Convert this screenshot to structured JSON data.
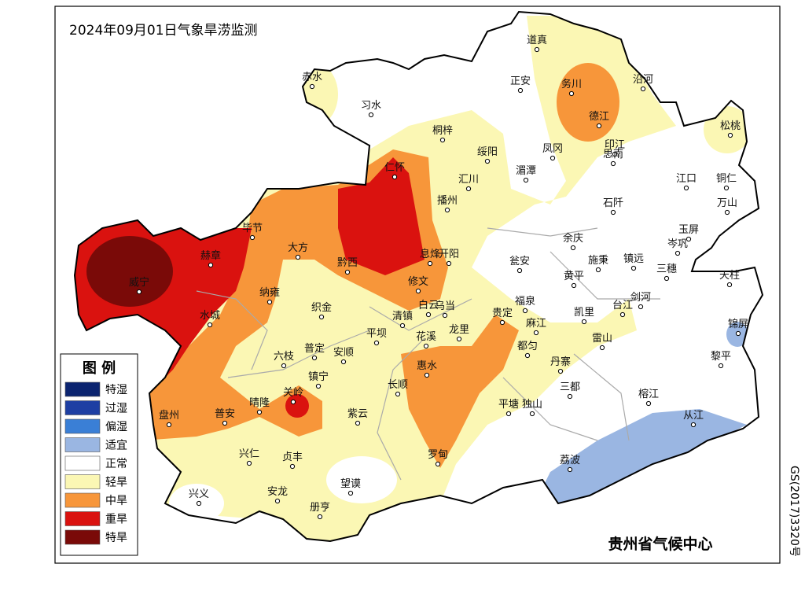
{
  "title": "2024年09月01日气象旱涝监测",
  "legend": {
    "title": "图  例",
    "items": [
      {
        "label": "特湿",
        "color": "#0b2470"
      },
      {
        "label": "过湿",
        "color": "#1e3fa3"
      },
      {
        "label": "偏湿",
        "color": "#3a7fd6"
      },
      {
        "label": "适宜",
        "color": "#9ab6e2"
      },
      {
        "label": "正常",
        "color": "#ffffff"
      },
      {
        "label": "轻旱",
        "color": "#fbf7b4"
      },
      {
        "label": "中旱",
        "color": "#f7963a"
      },
      {
        "label": "重旱",
        "color": "#da120f"
      },
      {
        "label": "特旱",
        "color": "#7a0a08"
      }
    ]
  },
  "cities": [
    "道真",
    "正安",
    "务川",
    "沿河",
    "赤水",
    "习水",
    "桐梓",
    "绥阳",
    "凤冈",
    "印江",
    "松桃",
    "德江",
    "思南",
    "湄潭",
    "江口",
    "铜仁",
    "仁怀",
    "汇川",
    "播州",
    "石阡",
    "万山",
    "毕节",
    "赫章",
    "大方",
    "黔西",
    "息烽",
    "开阳",
    "瓮安",
    "余庆",
    "施秉",
    "镇远",
    "玉屏",
    "岑巩",
    "三穗",
    "黄平",
    "天柱",
    "威宁",
    "纳雍",
    "修文",
    "福泉",
    "剑河",
    "凯里",
    "台江",
    "织金",
    "水城",
    "白云",
    "乌当",
    "清镇",
    "平坝",
    "贵定",
    "龙里",
    "花溪",
    "麻江",
    "都匀",
    "雷山",
    "锦屏",
    "普定",
    "安顺",
    "六枝",
    "黎平",
    "丹寨",
    "惠水",
    "镇宁",
    "长顺",
    "三都",
    "关岭",
    "晴隆",
    "榕江",
    "紫云",
    "平塘",
    "独山",
    "盘州",
    "普安",
    "从江",
    "兴仁",
    "贞丰",
    "罗甸",
    "荔波",
    "望谟",
    "兴义",
    "安龙",
    "册亨"
  ],
  "credit": "贵州省气候中心",
  "map_number": "GS(2017)3320号"
}
